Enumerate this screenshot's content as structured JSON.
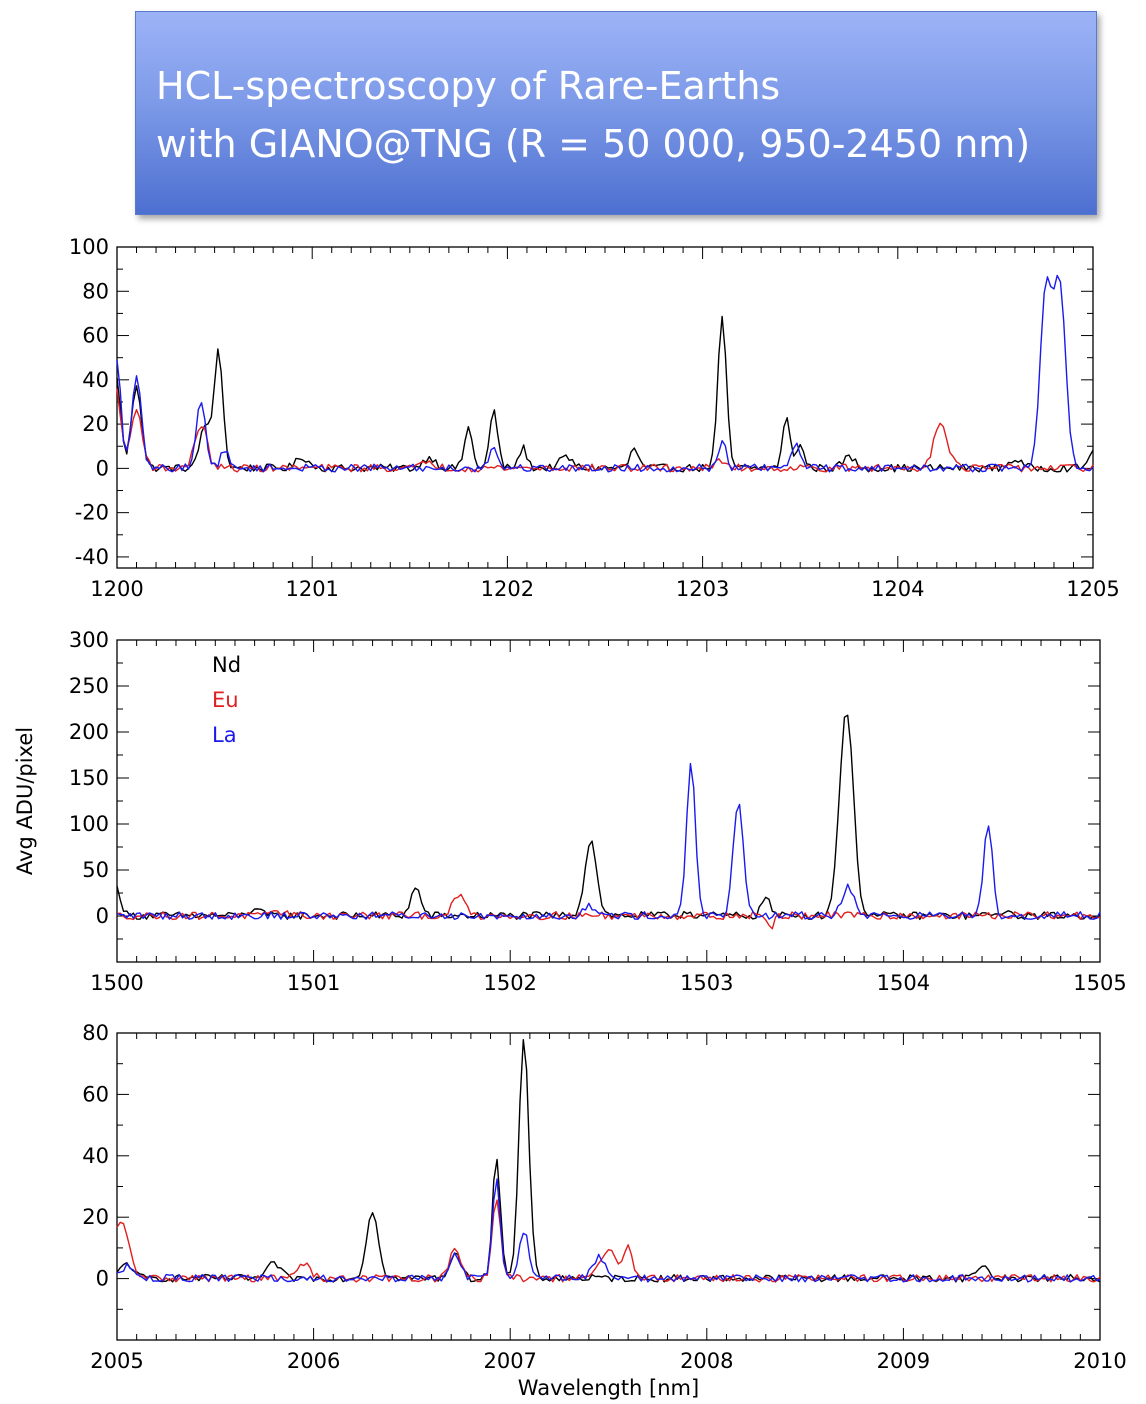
{
  "title": {
    "line1": "HCL-spectroscopy of Rare-Earths",
    "line2": "with GIANO@TNG (R = 50 000, 950-2450 nm)"
  },
  "colors": {
    "Nd": "#000000",
    "Eu": "#e02020",
    "La": "#1a1aee",
    "banner": "#7d9ae8"
  },
  "chart_data": [
    {
      "type": "line",
      "xlim": [
        1200,
        1205
      ],
      "ylim": [
        -45,
        100
      ],
      "xticks": [
        1200,
        1201,
        1202,
        1203,
        1204,
        1205
      ],
      "yticks": [
        -40,
        -20,
        0,
        20,
        40,
        60,
        80,
        100
      ],
      "xlabel": "",
      "ylabel": "",
      "series": [
        {
          "key": "Nd",
          "peaks": [
            [
              1200.0,
              40,
              0.02
            ],
            [
              1200.1,
              38,
              0.025
            ],
            [
              1200.45,
              20,
              0.025
            ],
            [
              1200.52,
              54,
              0.022
            ],
            [
              1200.95,
              5,
              0.03
            ],
            [
              1201.6,
              5,
              0.03
            ],
            [
              1201.8,
              18,
              0.02
            ],
            [
              1201.93,
              26,
              0.02
            ],
            [
              1202.08,
              9,
              0.02
            ],
            [
              1202.3,
              5,
              0.03
            ],
            [
              1202.65,
              9,
              0.02
            ],
            [
              1203.1,
              67,
              0.022
            ],
            [
              1203.43,
              22,
              0.02
            ],
            [
              1203.5,
              10,
              0.02
            ],
            [
              1203.75,
              5,
              0.03
            ],
            [
              1204.6,
              4,
              0.03
            ],
            [
              1205.0,
              9,
              0.02
            ]
          ]
        },
        {
          "key": "Eu",
          "peaks": [
            [
              1200.0,
              35,
              0.02
            ],
            [
              1200.1,
              26,
              0.03
            ],
            [
              1200.43,
              20,
              0.03
            ],
            [
              1201.6,
              3,
              0.03
            ],
            [
              1203.1,
              3,
              0.03
            ],
            [
              1204.22,
              21,
              0.035
            ]
          ]
        },
        {
          "key": "La",
          "peaks": [
            [
              1200.0,
              48,
              0.02
            ],
            [
              1200.1,
              40,
              0.025
            ],
            [
              1200.43,
              29,
              0.025
            ],
            [
              1200.55,
              8,
              0.02
            ],
            [
              1201.93,
              10,
              0.02
            ],
            [
              1203.1,
              12,
              0.02
            ],
            [
              1203.48,
              12,
              0.02
            ],
            [
              1204.76,
              80,
              0.03
            ],
            [
              1204.83,
              80,
              0.03
            ]
          ]
        }
      ]
    },
    {
      "type": "line",
      "xlim": [
        1500,
        1505
      ],
      "ylim": [
        -50,
        300
      ],
      "xticks": [
        1500,
        1501,
        1502,
        1503,
        1504,
        1505
      ],
      "yticks": [
        0,
        50,
        100,
        150,
        200,
        250,
        300
      ],
      "xlabel": "",
      "ylabel": "Avg ADU/pixel",
      "legend": [
        "Nd",
        "Eu",
        "La"
      ],
      "legend_position": "top-left",
      "series": [
        {
          "key": "Nd",
          "peaks": [
            [
              1500.0,
              30,
              0.02
            ],
            [
              1500.7,
              8,
              0.025
            ],
            [
              1501.52,
              30,
              0.025
            ],
            [
              1502.41,
              82,
              0.03
            ],
            [
              1502.9,
              5,
              0.02
            ],
            [
              1503.3,
              22,
              0.02
            ],
            [
              1503.71,
              225,
              0.035
            ],
            [
              1504.5,
              5,
              0.02
            ]
          ]
        },
        {
          "key": "Eu",
          "peaks": [
            [
              1500.85,
              5,
              0.03
            ],
            [
              1501.74,
              22,
              0.03
            ],
            [
              1503.33,
              -18,
              0.012
            ]
          ]
        },
        {
          "key": "La",
          "peaks": [
            [
              1502.4,
              10,
              0.03
            ],
            [
              1502.92,
              168,
              0.022
            ],
            [
              1503.16,
              122,
              0.025
            ],
            [
              1503.72,
              32,
              0.03
            ],
            [
              1504.43,
              102,
              0.022
            ]
          ]
        }
      ]
    },
    {
      "type": "line",
      "xlim": [
        2005,
        2010
      ],
      "ylim": [
        -20,
        80
      ],
      "xticks": [
        2005,
        2006,
        2007,
        2008,
        2009,
        2010
      ],
      "yticks": [
        0,
        20,
        40,
        60,
        80
      ],
      "xlabel": "Wavelength [nm]",
      "ylabel": "",
      "series": [
        {
          "key": "Nd",
          "peaks": [
            [
              2005.05,
              5,
              0.03
            ],
            [
              2005.8,
              5,
              0.03
            ],
            [
              2006.3,
              22,
              0.03
            ],
            [
              2006.72,
              9,
              0.025
            ],
            [
              2006.93,
              40,
              0.02
            ],
            [
              2007.07,
              78,
              0.025
            ],
            [
              2009.4,
              4,
              0.03
            ]
          ]
        },
        {
          "key": "Eu",
          "peaks": [
            [
              2005.02,
              18,
              0.04
            ],
            [
              2005.95,
              5,
              0.03
            ],
            [
              2006.72,
              10,
              0.025
            ],
            [
              2006.93,
              27,
              0.02
            ],
            [
              2007.5,
              9,
              0.04
            ],
            [
              2007.6,
              11,
              0.02
            ]
          ]
        },
        {
          "key": "La",
          "peaks": [
            [
              2005.05,
              4,
              0.03
            ],
            [
              2006.72,
              8,
              0.025
            ],
            [
              2006.93,
              32,
              0.02
            ],
            [
              2007.07,
              15,
              0.025
            ],
            [
              2007.45,
              7,
              0.03
            ]
          ]
        }
      ]
    }
  ]
}
